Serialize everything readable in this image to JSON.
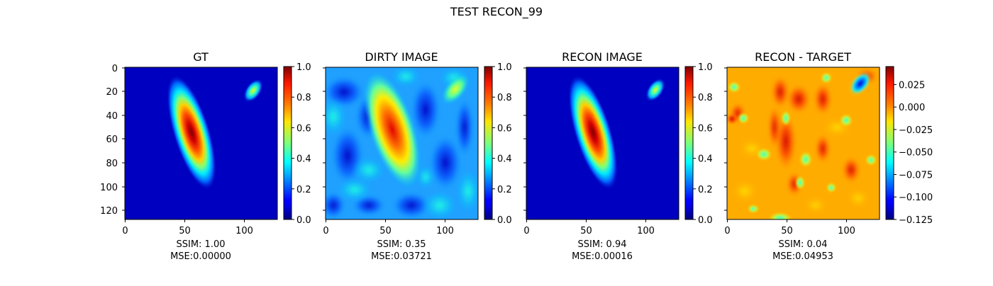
{
  "figure": {
    "suptitle": "TEST RECON_99"
  },
  "chart_data": [
    {
      "type": "heatmap",
      "title": "GT",
      "colormap": "jet",
      "image_size": [
        128,
        128
      ],
      "x_ticks": [
        "0",
        "50",
        "100"
      ],
      "y_ticks": [
        "0",
        "20",
        "40",
        "60",
        "80",
        "100",
        "120"
      ],
      "colorbar": {
        "range": [
          0,
          1
        ],
        "ticks": [
          "0.0",
          "0.2",
          "0.4",
          "0.6",
          "0.8",
          "1.0"
        ]
      },
      "caption": [
        "SSIM: 1.00",
        "MSE:0.00000"
      ],
      "features": [
        {
          "shape": "elongated blob",
          "center": [
            56,
            55
          ],
          "peak": 1.0
        },
        {
          "shape": "small blob",
          "center": [
            107,
            20
          ],
          "peak": 0.6
        }
      ]
    },
    {
      "type": "heatmap",
      "title": "DIRTY IMAGE",
      "colormap": "jet",
      "image_size": [
        128,
        128
      ],
      "x_ticks": [
        "0",
        "50",
        "100"
      ],
      "colorbar": {
        "range": [
          0,
          1
        ],
        "ticks": [
          "0.0",
          "0.2",
          "0.4",
          "0.6",
          "0.8",
          "1.0"
        ]
      },
      "caption": [
        "SSIM: 0.35",
        "MSE:0.03721"
      ]
    },
    {
      "type": "heatmap",
      "title": "RECON IMAGE",
      "colormap": "jet",
      "image_size": [
        128,
        128
      ],
      "x_ticks": [
        "0",
        "50",
        "100"
      ],
      "colorbar": {
        "range": [
          0,
          1
        ],
        "ticks": [
          "0.0",
          "0.2",
          "0.4",
          "0.6",
          "0.8",
          "1.0"
        ]
      },
      "caption": [
        "SSIM: 0.94",
        "MSE:0.00016"
      ]
    },
    {
      "type": "heatmap",
      "title": "RECON - TARGET",
      "colormap": "jet",
      "image_size": [
        128,
        128
      ],
      "x_ticks": [
        "0",
        "50",
        "100"
      ],
      "colorbar": {
        "range": [
          -0.125,
          0.045
        ],
        "ticks": [
          "0.025",
          "0.000",
          "−0.025",
          "−0.050",
          "−0.075",
          "−0.100",
          "−0.125"
        ]
      },
      "caption": [
        "SSIM: 0.04",
        "MSE:0.04953"
      ]
    }
  ]
}
